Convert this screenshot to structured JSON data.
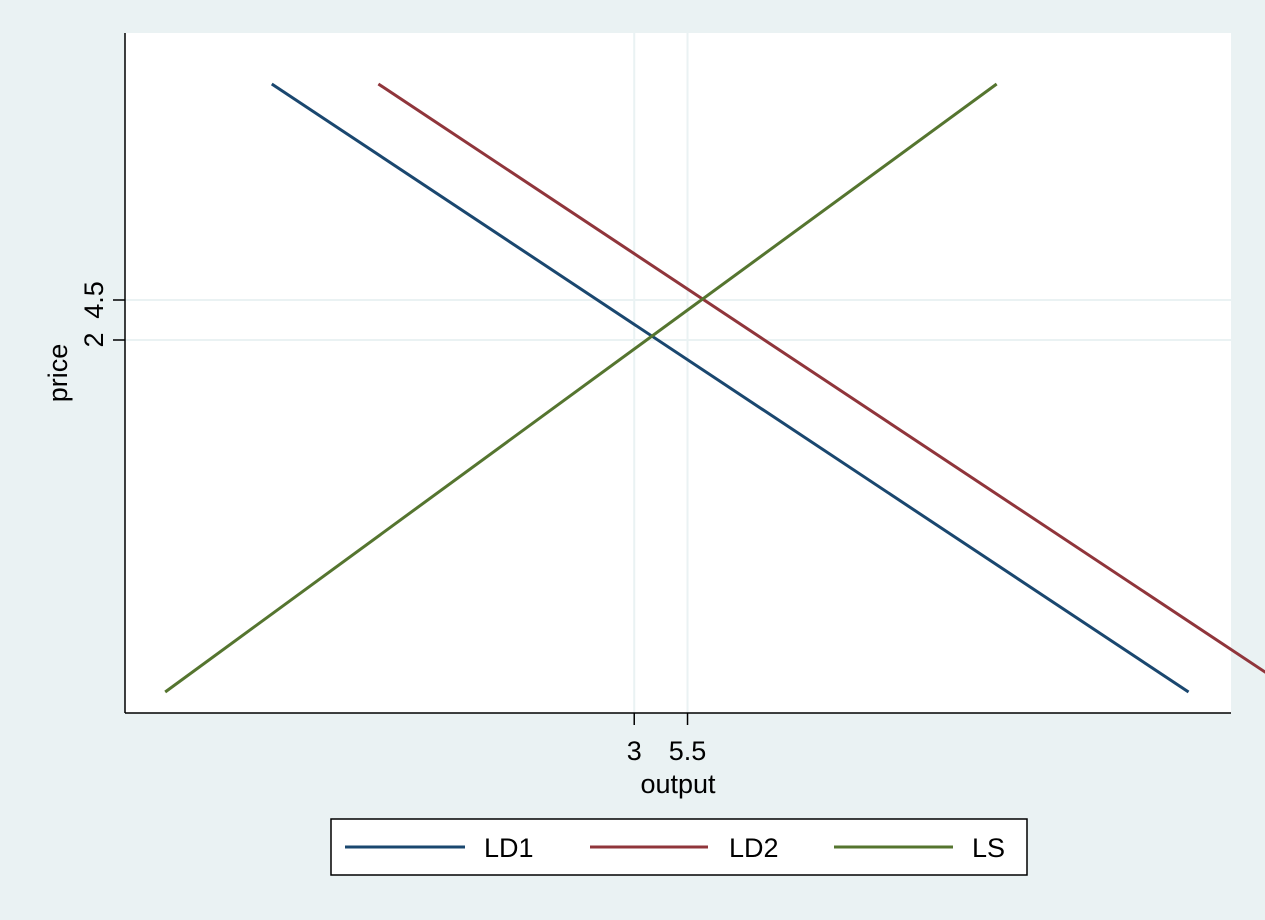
{
  "chart_data": {
    "type": "line",
    "title": "",
    "xlabel": "output",
    "ylabel": "price",
    "x_ticks": [
      3,
      5.5
    ],
    "y_ticks": [
      2,
      4.5
    ],
    "xlim": [
      -19.9,
      30.1
    ],
    "ylim": [
      -20,
      20
    ],
    "grid": true,
    "legend_position": "bottom",
    "series": [
      {
        "name": "LD1",
        "color": "#1a476f",
        "points": [
          [
            -14,
            18
          ],
          [
            29,
            -20
          ]
        ]
      },
      {
        "name": "LD2",
        "color": "#90353b",
        "points": [
          [
            -9,
            18
          ],
          [
            34,
            -20
          ]
        ]
      },
      {
        "name": "LS",
        "color": "#55752f",
        "points": [
          [
            -19,
            -20
          ],
          [
            20,
            18
          ]
        ]
      }
    ]
  }
}
